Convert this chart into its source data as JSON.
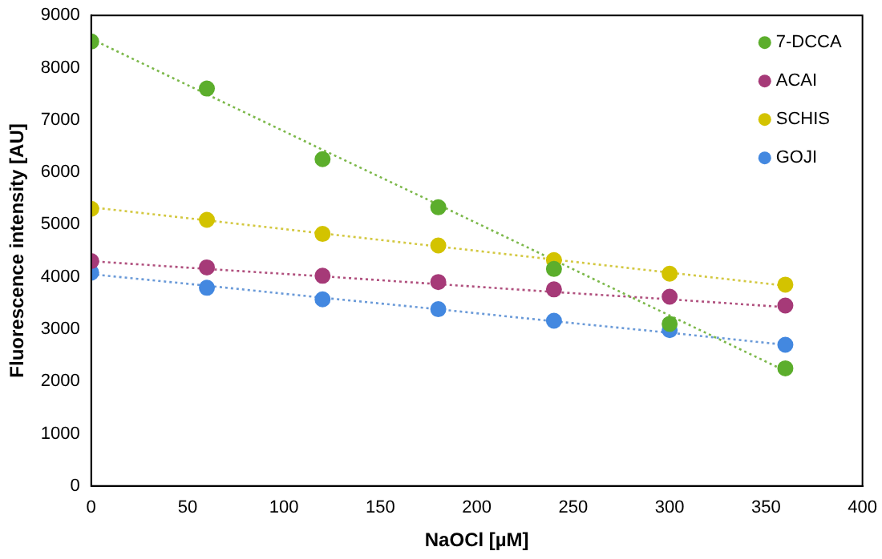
{
  "chart_data": {
    "type": "scatter",
    "xlabel": "NaOCl [µM]",
    "ylabel": "Fluorescence intensity [AU]",
    "x": [
      0,
      60,
      120,
      180,
      240,
      300,
      360
    ],
    "series": [
      {
        "name": "7-DCCA",
        "color": "#5cae2c",
        "values": [
          8500,
          7600,
          6250,
          5330,
          4150,
          3100,
          2250
        ]
      },
      {
        "name": "ACAI",
        "color": "#a63a78",
        "values": [
          4300,
          4180,
          4020,
          3900,
          3760,
          3620,
          3450
        ]
      },
      {
        "name": "SCHIS",
        "color": "#d3c300",
        "values": [
          5300,
          5090,
          4820,
          4600,
          4320,
          4060,
          3850
        ]
      },
      {
        "name": "GOJI",
        "color": "#4388e0",
        "values": [
          4080,
          3790,
          3570,
          3380,
          3160,
          2980,
          2700
        ]
      },
      {
        "type": "line",
        "marker": "none",
        "color": "#7cb84a",
        "values": [
          8550,
          7490,
          6430,
          5380,
          4320,
          3260,
          2200
        ]
      },
      {
        "type": "line",
        "marker": "none",
        "color": "#b0507e",
        "values": [
          4300,
          4150,
          4010,
          3860,
          3710,
          3570,
          3420
        ]
      },
      {
        "type": "line",
        "marker": "none",
        "color": "#d3c840",
        "values": [
          5330,
          5080,
          4830,
          4580,
          4330,
          4080,
          3830
        ]
      },
      {
        "type": "line",
        "marker": "none",
        "color": "#6a9ad8",
        "values": [
          4050,
          3830,
          3600,
          3380,
          3150,
          2930,
          2700
        ]
      }
    ],
    "xlim": [
      0,
      400
    ],
    "xticks": [
      0,
      50,
      100,
      150,
      200,
      250,
      300,
      350,
      400
    ],
    "ylim": [
      0,
      9000
    ],
    "yticks": [
      0,
      1000,
      2000,
      3000,
      4000,
      5000,
      6000,
      7000,
      8000,
      9000
    ],
    "grid": false,
    "legend": "top right",
    "marker": "circle",
    "line_style": "dotted"
  }
}
